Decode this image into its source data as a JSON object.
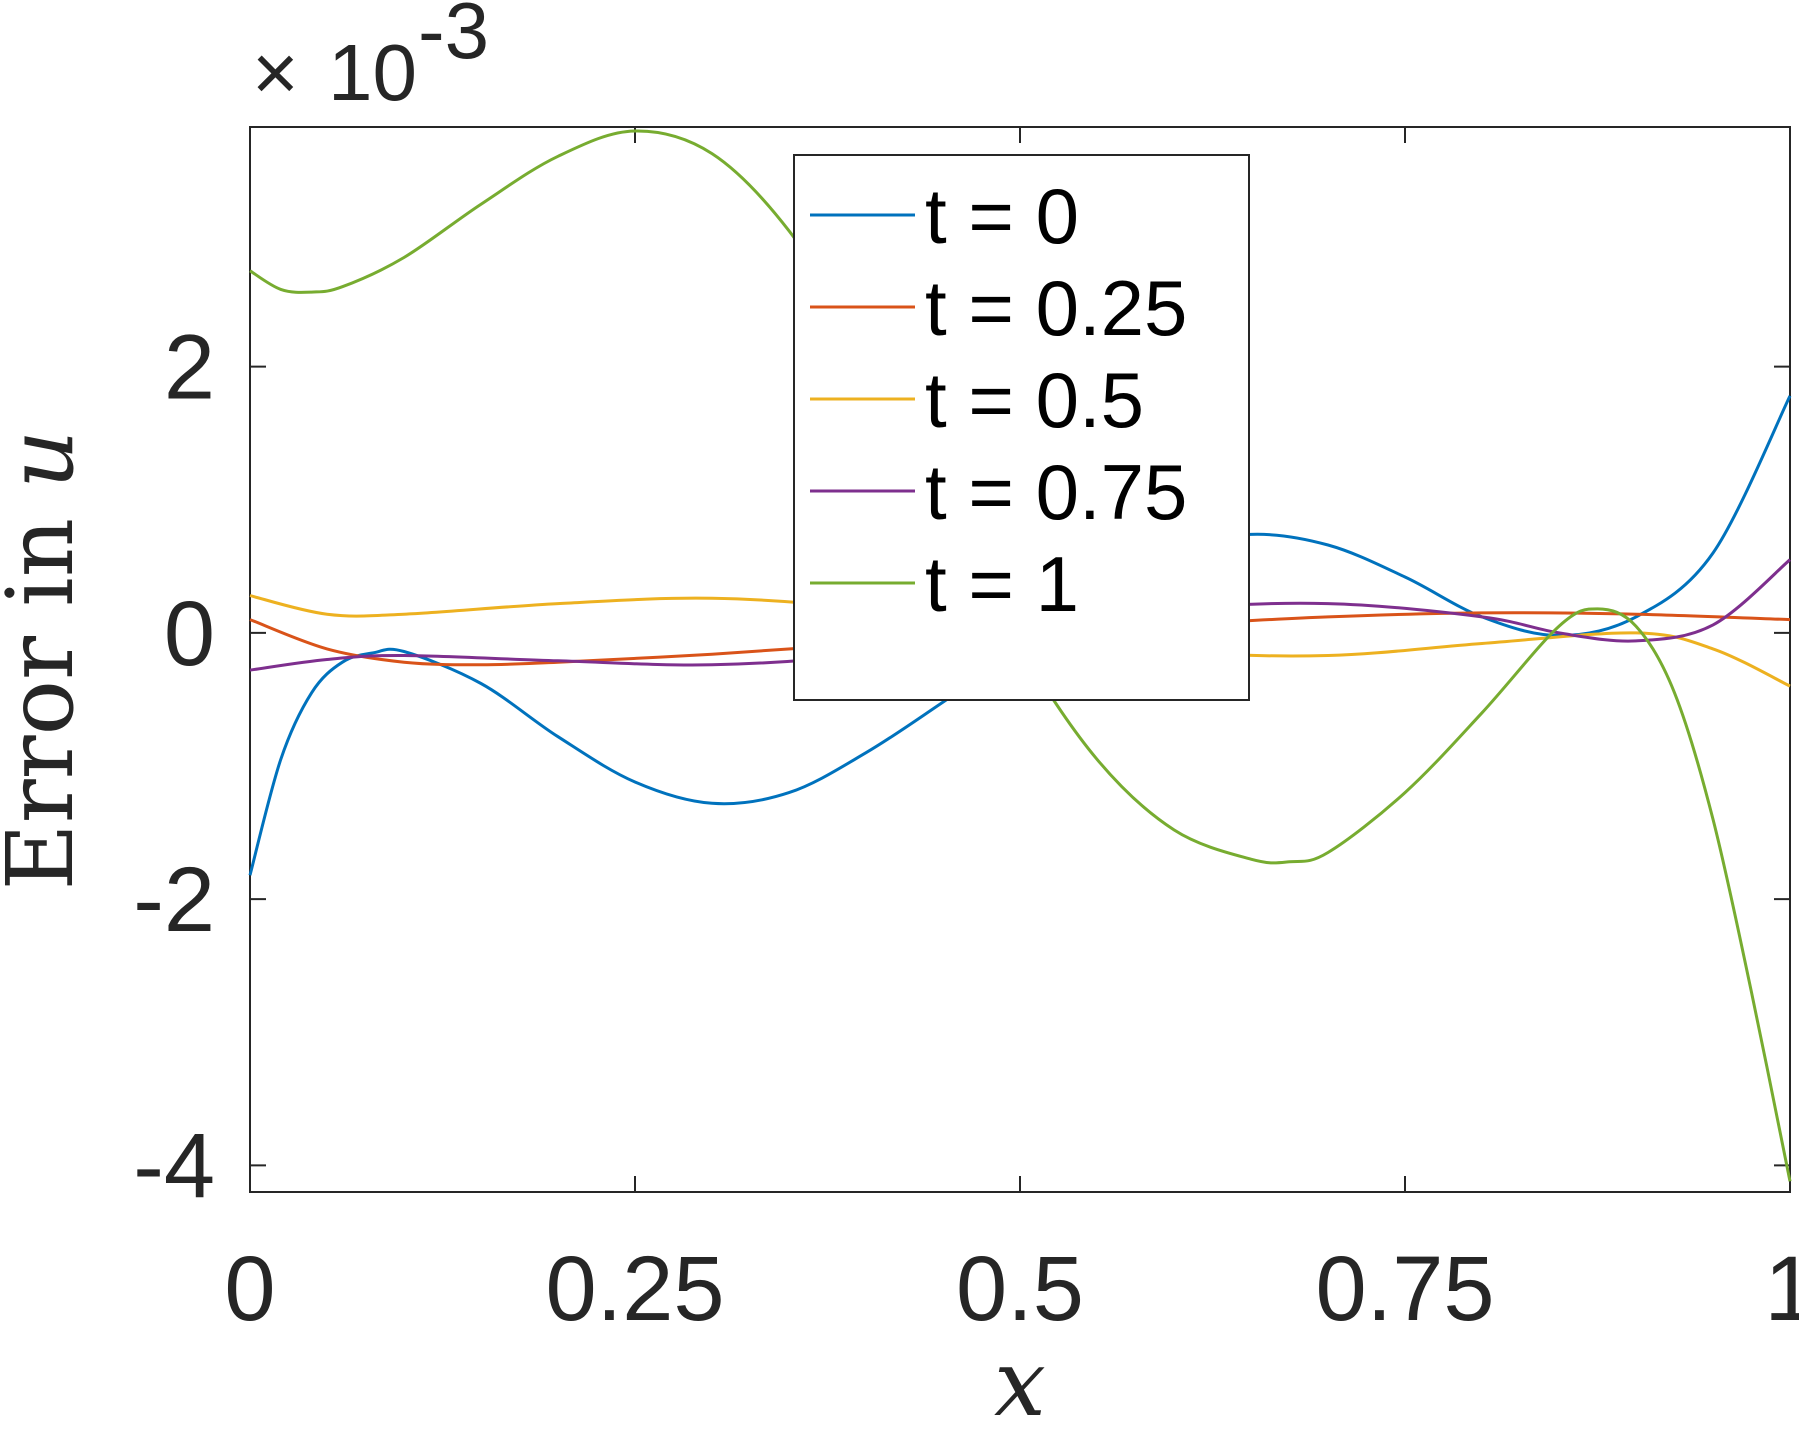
{
  "chart_data": {
    "type": "line",
    "title": "",
    "xlabel": "x",
    "ylabel_text": "Error in ",
    "ylabel_var": "u",
    "exponent_multiplier": "×",
    "exponent_base": "10",
    "exponent_power": "-3",
    "xlim": [
      0,
      1
    ],
    "ylim": [
      -4.2,
      3.8
    ],
    "xticks": [
      0,
      0.25,
      0.5,
      0.75,
      1
    ],
    "xtick_labels": [
      "0",
      "0.25",
      "0.5",
      "0.75",
      "1"
    ],
    "yticks": [
      -4,
      -2,
      0,
      2
    ],
    "ytick_labels": [
      "-4",
      "-2",
      "0",
      "2"
    ],
    "grid": false,
    "legend_position": "top-center",
    "series": [
      {
        "name": "t = 0",
        "color": "#0072BD",
        "x": [
          0,
          0.02,
          0.04,
          0.06,
          0.08,
          0.1,
          0.15,
          0.2,
          0.25,
          0.3,
          0.35,
          0.4,
          0.45,
          0.5,
          0.55,
          0.6,
          0.65,
          0.7,
          0.75,
          0.8,
          0.85,
          0.9,
          0.95,
          1.0
        ],
        "y": [
          -1.82,
          -0.95,
          -0.45,
          -0.22,
          -0.15,
          -0.14,
          -0.38,
          -0.78,
          -1.12,
          -1.28,
          -1.2,
          -0.9,
          -0.52,
          -0.12,
          0.3,
          0.62,
          0.74,
          0.66,
          0.42,
          0.12,
          -0.02,
          0.12,
          0.6,
          1.78
        ]
      },
      {
        "name": "t = 0.25",
        "color": "#D95319",
        "x": [
          0,
          0.05,
          0.1,
          0.15,
          0.2,
          0.3,
          0.4,
          0.5,
          0.6,
          0.7,
          0.8,
          0.9,
          1.0
        ],
        "y": [
          0.1,
          -0.12,
          -0.22,
          -0.24,
          -0.22,
          -0.16,
          -0.08,
          -0.01,
          0.06,
          0.12,
          0.15,
          0.14,
          0.1
        ]
      },
      {
        "name": "t = 0.5",
        "color": "#EDB120",
        "x": [
          0,
          0.05,
          0.1,
          0.2,
          0.3,
          0.4,
          0.5,
          0.6,
          0.7,
          0.8,
          0.9,
          0.95,
          1.0
        ],
        "y": [
          0.28,
          0.14,
          0.14,
          0.22,
          0.26,
          0.18,
          0.0,
          -0.14,
          -0.17,
          -0.08,
          0.0,
          -0.12,
          -0.4
        ]
      },
      {
        "name": "t = 0.75",
        "color": "#7E2F8E",
        "x": [
          0,
          0.05,
          0.1,
          0.2,
          0.3,
          0.4,
          0.5,
          0.6,
          0.7,
          0.8,
          0.85,
          0.9,
          0.95,
          1.0
        ],
        "y": [
          -0.28,
          -0.2,
          -0.17,
          -0.21,
          -0.24,
          -0.16,
          0.03,
          0.18,
          0.22,
          0.12,
          0.0,
          -0.06,
          0.06,
          0.55
        ]
      },
      {
        "name": "t = 1",
        "color": "#77AC30",
        "x": [
          0,
          0.02,
          0.04,
          0.06,
          0.1,
          0.15,
          0.2,
          0.25,
          0.3,
          0.35,
          0.4,
          0.45,
          0.5,
          0.55,
          0.6,
          0.65,
          0.675,
          0.7,
          0.75,
          0.8,
          0.85,
          0.875,
          0.9,
          0.925,
          0.95,
          0.975,
          1.0
        ],
        "y": [
          2.72,
          2.58,
          2.56,
          2.6,
          2.82,
          3.22,
          3.58,
          3.77,
          3.6,
          3.02,
          2.1,
          1.0,
          -0.1,
          -0.95,
          -1.48,
          -1.7,
          -1.72,
          -1.65,
          -1.2,
          -0.6,
          0.05,
          0.18,
          0.05,
          -0.45,
          -1.4,
          -2.7,
          -4.12
        ]
      }
    ]
  }
}
